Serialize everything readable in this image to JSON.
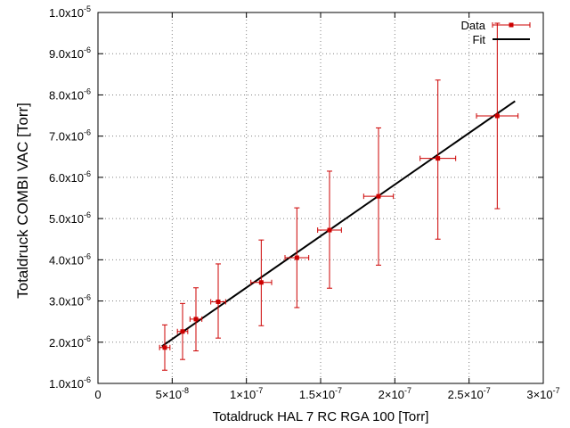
{
  "chart_data": {
    "type": "scatter",
    "xlabel": "Totaldruck HAL 7 RC RGA 100 [Torr]",
    "ylabel": "Totaldruck COMBI VAC [Torr]",
    "xlim": [
      0,
      3e-07
    ],
    "ylim": [
      1e-06,
      1e-05
    ],
    "x_ticks": [
      {
        "value": 0,
        "mant": "0",
        "exp": ""
      },
      {
        "value": 5e-08,
        "mant": "5×10",
        "exp": "-8"
      },
      {
        "value": 1e-07,
        "mant": "1×10",
        "exp": "-7"
      },
      {
        "value": 1.5e-07,
        "mant": "1.5×10",
        "exp": "-7"
      },
      {
        "value": 2e-07,
        "mant": "2×10",
        "exp": "-7"
      },
      {
        "value": 2.5e-07,
        "mant": "2.5×10",
        "exp": "-7"
      },
      {
        "value": 3e-07,
        "mant": "3×10",
        "exp": "-7"
      }
    ],
    "y_ticks": [
      {
        "value": 1e-06,
        "mant": "1.0x10",
        "exp": "-6"
      },
      {
        "value": 2e-06,
        "mant": "2.0x10",
        "exp": "-6"
      },
      {
        "value": 3e-06,
        "mant": "3.0x10",
        "exp": "-6"
      },
      {
        "value": 4e-06,
        "mant": "4.0x10",
        "exp": "-6"
      },
      {
        "value": 5e-06,
        "mant": "5.0x10",
        "exp": "-6"
      },
      {
        "value": 6e-06,
        "mant": "6.0x10",
        "exp": "-6"
      },
      {
        "value": 7e-06,
        "mant": "7.0x10",
        "exp": "-6"
      },
      {
        "value": 8e-06,
        "mant": "8.0x10",
        "exp": "-6"
      },
      {
        "value": 9e-06,
        "mant": "9.0x10",
        "exp": "-6"
      },
      {
        "value": 1e-05,
        "mant": "1.0x10",
        "exp": "-5"
      }
    ],
    "grid": true,
    "grid_style": "dotted",
    "legend_position": "top-right",
    "series": [
      {
        "name": "Data",
        "color": "#cc0000",
        "points": [
          {
            "x": 4.5e-08,
            "y": 1.87e-06,
            "xerr": 3.5e-09,
            "yerr_low": 5.5e-07,
            "yerr_high": 5.5e-07
          },
          {
            "x": 5.7e-08,
            "y": 2.26e-06,
            "xerr": 3.5e-09,
            "yerr_low": 6.8e-07,
            "yerr_high": 6.8e-07
          },
          {
            "x": 6.6e-08,
            "y": 2.56e-06,
            "xerr": 4e-09,
            "yerr_low": 7.7e-07,
            "yerr_high": 7.6e-07
          },
          {
            "x": 8.1e-08,
            "y": 2.98e-06,
            "xerr": 5e-09,
            "yerr_low": 8.8e-07,
            "yerr_high": 9.2e-07
          },
          {
            "x": 1.1e-07,
            "y": 3.45e-06,
            "xerr": 7e-09,
            "yerr_low": 1.05e-06,
            "yerr_high": 1.03e-06
          },
          {
            "x": 1.34e-07,
            "y": 4.05e-06,
            "xerr": 8e-09,
            "yerr_low": 1.21e-06,
            "yerr_high": 1.21e-06
          },
          {
            "x": 1.56e-07,
            "y": 4.72e-06,
            "xerr": 8e-09,
            "yerr_low": 1.41e-06,
            "yerr_high": 1.43e-06
          },
          {
            "x": 1.89e-07,
            "y": 5.54e-06,
            "xerr": 1e-08,
            "yerr_low": 1.67e-06,
            "yerr_high": 1.66e-06
          },
          {
            "x": 2.29e-07,
            "y": 6.46e-06,
            "xerr": 1.2e-08,
            "yerr_low": 1.96e-06,
            "yerr_high": 1.9e-06
          },
          {
            "x": 2.69e-07,
            "y": 7.49e-06,
            "xerr": 1.4e-08,
            "yerr_low": 2.25e-06,
            "yerr_high": 2.25e-06
          }
        ]
      },
      {
        "name": "Fit",
        "color": "#000000",
        "type": "line",
        "points": [
          {
            "x": 4.3e-08,
            "y": 1.9e-06
          },
          {
            "x": 2.81e-07,
            "y": 7.85e-06
          }
        ]
      }
    ]
  }
}
